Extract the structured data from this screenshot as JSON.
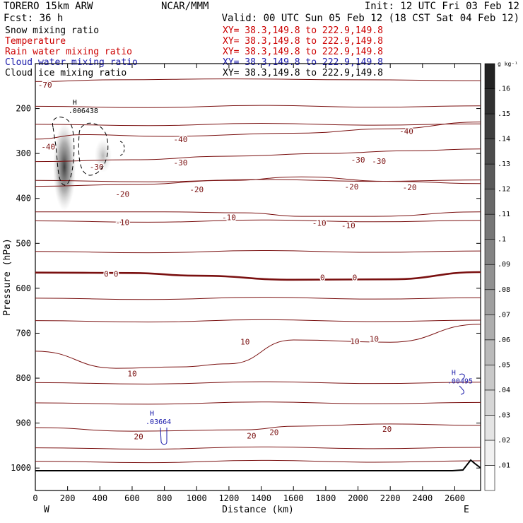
{
  "header": {
    "model": "TORERO  15km ARW",
    "org": "NCAR/MMM",
    "init": "Init: 12 UTC Fri 03 Feb 12",
    "fcst": "Fcst:    36 h",
    "valid": "Valid: 00 UTC Sun 05 Feb 12 (18 CST Sat 04 Feb 12)"
  },
  "fields": [
    {
      "label": "Snow mixing ratio",
      "color": "#000000",
      "xy": "XY=  38.3,149.8 to 222.9,149.8",
      "xy_color": "#cc0000"
    },
    {
      "label": "Temperature",
      "color": "#cc0000",
      "xy": "XY=  38.3,149.8 to 222.9,149.8",
      "xy_color": "#cc0000"
    },
    {
      "label": "Rain water mixing ratio",
      "color": "#cc0000",
      "xy": "XY=  38.3,149.8 to 222.9,149.8",
      "xy_color": "#cc0000"
    },
    {
      "label": "Cloud water mixing ratio",
      "color": "#1a1aaa",
      "xy": "XY=  38.3,149.8 to 222.9,149.8",
      "xy_color": "#1a1aaa"
    },
    {
      "label": "Cloud ice mixing ratio",
      "color": "#000000",
      "xy": "XY=  38.3,149.8 to 222.9,149.8",
      "xy_color": "#000000"
    }
  ],
  "colorbar": {
    "unit": "g kg⁻¹",
    "ticks": [
      ".01",
      ".02",
      ".03",
      ".04",
      ".05",
      ".06",
      ".07",
      ".08",
      ".09",
      ".1",
      ".11",
      ".12",
      ".13",
      ".14",
      ".15",
      ".16"
    ]
  },
  "chart_data": {
    "type": "cross-section",
    "xlabel": "Distance (km)",
    "ylabel": "Pressure (hPa)",
    "xlim": [
      0,
      2760
    ],
    "ylim": [
      1050,
      100
    ],
    "x_ticks": [
      "0",
      "200",
      "400",
      "600",
      "800",
      "1000",
      "1200",
      "1400",
      "1600",
      "1800",
      "2000",
      "2200",
      "2400",
      "2600"
    ],
    "x_tick_values": [
      0,
      200,
      400,
      600,
      800,
      1000,
      1200,
      1400,
      1600,
      1800,
      2000,
      2200,
      2400,
      2600
    ],
    "y_ticks": [
      "200",
      "300",
      "400",
      "500",
      "600",
      "700",
      "800",
      "900",
      "1000"
    ],
    "y_tick_values": [
      200,
      300,
      400,
      500,
      600,
      700,
      800,
      900,
      1000
    ],
    "end_labels": {
      "west": "W",
      "east": "E"
    },
    "temperature_isotherms": [
      {
        "label": "-70",
        "points": [
          [
            0,
            140
          ],
          [
            500,
            136
          ],
          [
            1200,
            134
          ],
          [
            2000,
            136
          ],
          [
            2760,
            138
          ]
        ],
        "label_at": [
          [
            60,
            147
          ]
        ]
      },
      {
        "label": "-40",
        "points": [
          [
            0,
            268
          ],
          [
            300,
            258
          ],
          [
            800,
            262
          ],
          [
            1600,
            255
          ],
          [
            2200,
            245
          ],
          [
            2760,
            230
          ]
        ],
        "label_at": [
          [
            80,
            285
          ],
          [
            900,
            268
          ],
          [
            2300,
            250
          ]
        ]
      },
      {
        "label": "-30",
        "points": [
          [
            0,
            318
          ],
          [
            600,
            314
          ],
          [
            1200,
            306
          ],
          [
            1800,
            300
          ],
          [
            2300,
            294
          ],
          [
            2760,
            290
          ]
        ],
        "label_at": [
          [
            380,
            330
          ],
          [
            900,
            320
          ],
          [
            2000,
            314
          ],
          [
            2130,
            317
          ]
        ]
      },
      {
        "label": "-20",
        "points": [
          [
            0,
            373
          ],
          [
            600,
            369
          ],
          [
            1200,
            360
          ],
          [
            1650,
            352
          ],
          [
            2200,
            362
          ],
          [
            2760,
            367
          ]
        ],
        "label_at": [
          [
            540,
            390
          ],
          [
            1000,
            380
          ],
          [
            1960,
            374
          ],
          [
            2320,
            375
          ]
        ]
      },
      {
        "label": "-10",
        "points": [
          [
            0,
            430
          ],
          [
            800,
            430
          ],
          [
            1300,
            432
          ],
          [
            1650,
            440
          ],
          [
            2100,
            440
          ],
          [
            2760,
            430
          ]
        ],
        "label_at": [
          [
            540,
            453
          ],
          [
            1200,
            442
          ],
          [
            1760,
            455
          ],
          [
            1940,
            460
          ]
        ]
      },
      {
        "label": "0",
        "points": [
          [
            0,
            565
          ],
          [
            600,
            566
          ],
          [
            1000,
            572
          ],
          [
            1600,
            581
          ],
          [
            2200,
            580
          ],
          [
            2760,
            564
          ]
        ],
        "label_at": [
          [
            440,
            568
          ],
          [
            500,
            568
          ],
          [
            1780,
            576
          ],
          [
            1980,
            576
          ]
        ],
        "bold": true
      },
      {
        "label": "10",
        "points": [
          [
            0,
            740
          ],
          [
            500,
            778
          ],
          [
            900,
            775
          ],
          [
            1200,
            768
          ],
          [
            1600,
            715
          ],
          [
            2200,
            720
          ],
          [
            2760,
            680
          ]
        ],
        "label_at": [
          [
            600,
            790
          ],
          [
            1300,
            719
          ],
          [
            1980,
            718
          ],
          [
            2100,
            713
          ]
        ]
      },
      {
        "label": "20",
        "points": [
          [
            0,
            910
          ],
          [
            600,
            918
          ],
          [
            1300,
            915
          ],
          [
            1600,
            907
          ],
          [
            2200,
            902
          ],
          [
            2760,
            905
          ]
        ],
        "label_at": [
          [
            640,
            930
          ],
          [
            1340,
            928
          ],
          [
            1480,
            920
          ],
          [
            2180,
            913
          ]
        ]
      }
    ],
    "other_isotherms_p": [
      195,
      235,
      360,
      450,
      518,
      622,
      672,
      810,
      855,
      955,
      985
    ],
    "cloud_water_maxima": [
      {
        "label": ".03664",
        "x": 780,
        "p": 905
      },
      {
        "label": ".00495",
        "x": 2650,
        "p": 815
      }
    ],
    "cloud_ice_maxima": [
      {
        "label": ".006438",
        "x": 240,
        "p": 210
      }
    ]
  }
}
